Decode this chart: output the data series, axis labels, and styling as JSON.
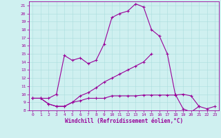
{
  "xlabel": "Windchill (Refroidissement éolien,°C)",
  "background_color": "#cff0f0",
  "line_color": "#990099",
  "x_hours": [
    0,
    1,
    2,
    3,
    4,
    5,
    6,
    7,
    8,
    9,
    10,
    11,
    12,
    13,
    14,
    15,
    16,
    17,
    18,
    19,
    20,
    21,
    22,
    23
  ],
  "line1": [
    9.5,
    9.5,
    9.5,
    10.0,
    14.8,
    14.2,
    14.5,
    13.8,
    14.2,
    16.2,
    19.5,
    20.0,
    20.3,
    21.2,
    20.8,
    18.0,
    17.2,
    15.0,
    10.0,
    8.2,
    7.8,
    8.5,
    null,
    null
  ],
  "line2": [
    9.5,
    9.5,
    8.8,
    8.5,
    8.5,
    9.0,
    9.8,
    10.2,
    10.8,
    11.5,
    12.0,
    12.5,
    13.0,
    13.5,
    14.0,
    15.0,
    null,
    null,
    null,
    null,
    null,
    null,
    null,
    null
  ],
  "line3": [
    9.5,
    9.5,
    8.8,
    8.5,
    8.5,
    9.0,
    9.2,
    9.5,
    9.5,
    9.5,
    9.8,
    9.8,
    9.8,
    9.8,
    9.9,
    9.9,
    9.9,
    9.9,
    9.9,
    10.0,
    9.8,
    8.5,
    8.2,
    8.5
  ],
  "ylim": [
    8,
    21.5
  ],
  "xlim": [
    -0.5,
    23.5
  ],
  "yticks": [
    8,
    9,
    10,
    11,
    12,
    13,
    14,
    15,
    16,
    17,
    18,
    19,
    20,
    21
  ],
  "xticks": [
    0,
    1,
    2,
    3,
    4,
    5,
    6,
    7,
    8,
    9,
    10,
    11,
    12,
    13,
    14,
    15,
    16,
    17,
    18,
    19,
    20,
    21,
    22,
    23
  ]
}
